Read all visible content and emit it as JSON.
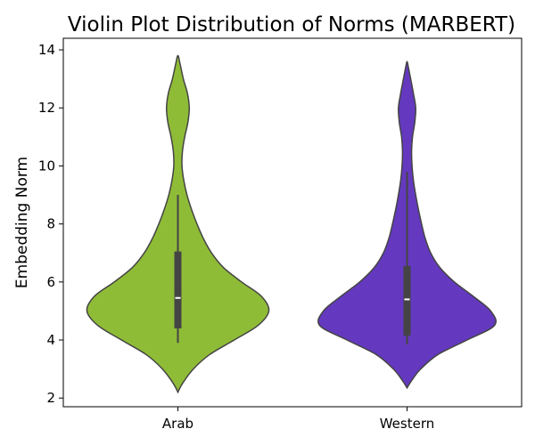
{
  "chart_data": {
    "type": "violin",
    "title": "Violin Plot Distribution of Norms (MARBERT)",
    "xlabel": "",
    "ylabel": "Embedding Norm",
    "ylim": [
      1.7,
      14.4
    ],
    "yticks": [
      "2",
      "4",
      "6",
      "8",
      "10",
      "12",
      "14"
    ],
    "grid": false,
    "categories": [
      "Arab",
      "Western"
    ],
    "series": [
      {
        "category": "Arab",
        "color": "#8fbc37",
        "min": 2.2,
        "max": 13.8,
        "whisker_low": 3.9,
        "q1": 4.4,
        "median": 5.45,
        "q3": 7.05,
        "whisker_high": 9.0,
        "density_profile": [
          [
            2.2,
            0.0
          ],
          [
            2.5,
            0.05
          ],
          [
            3.0,
            0.17
          ],
          [
            3.5,
            0.35
          ],
          [
            4.0,
            0.62
          ],
          [
            4.5,
            0.88
          ],
          [
            5.0,
            1.0
          ],
          [
            5.5,
            0.92
          ],
          [
            6.0,
            0.7
          ],
          [
            6.5,
            0.5
          ],
          [
            7.0,
            0.37
          ],
          [
            7.5,
            0.28
          ],
          [
            8.0,
            0.21
          ],
          [
            8.5,
            0.15
          ],
          [
            9.0,
            0.1
          ],
          [
            9.5,
            0.065
          ],
          [
            10.0,
            0.045
          ],
          [
            10.5,
            0.05
          ],
          [
            11.0,
            0.075
          ],
          [
            11.5,
            0.11
          ],
          [
            12.0,
            0.125
          ],
          [
            12.5,
            0.105
          ],
          [
            13.0,
            0.06
          ],
          [
            13.5,
            0.025
          ],
          [
            13.8,
            0.0
          ]
        ]
      },
      {
        "category": "Western",
        "color": "#6439bf",
        "min": 2.35,
        "max": 13.6,
        "whisker_low": 3.85,
        "q1": 4.15,
        "median": 5.4,
        "q3": 6.55,
        "whisker_high": 9.8,
        "density_profile": [
          [
            2.35,
            0.0
          ],
          [
            2.6,
            0.05
          ],
          [
            3.0,
            0.15
          ],
          [
            3.5,
            0.34
          ],
          [
            4.0,
            0.66
          ],
          [
            4.5,
            0.96
          ],
          [
            5.0,
            0.92
          ],
          [
            5.5,
            0.73
          ],
          [
            6.0,
            0.52
          ],
          [
            6.5,
            0.36
          ],
          [
            7.0,
            0.26
          ],
          [
            7.5,
            0.2
          ],
          [
            8.0,
            0.16
          ],
          [
            8.5,
            0.125
          ],
          [
            9.0,
            0.095
          ],
          [
            9.5,
            0.07
          ],
          [
            10.0,
            0.055
          ],
          [
            10.5,
            0.05
          ],
          [
            11.0,
            0.06
          ],
          [
            11.5,
            0.085
          ],
          [
            12.0,
            0.095
          ],
          [
            12.5,
            0.07
          ],
          [
            13.0,
            0.04
          ],
          [
            13.4,
            0.015
          ],
          [
            13.6,
            0.0
          ]
        ]
      }
    ]
  }
}
